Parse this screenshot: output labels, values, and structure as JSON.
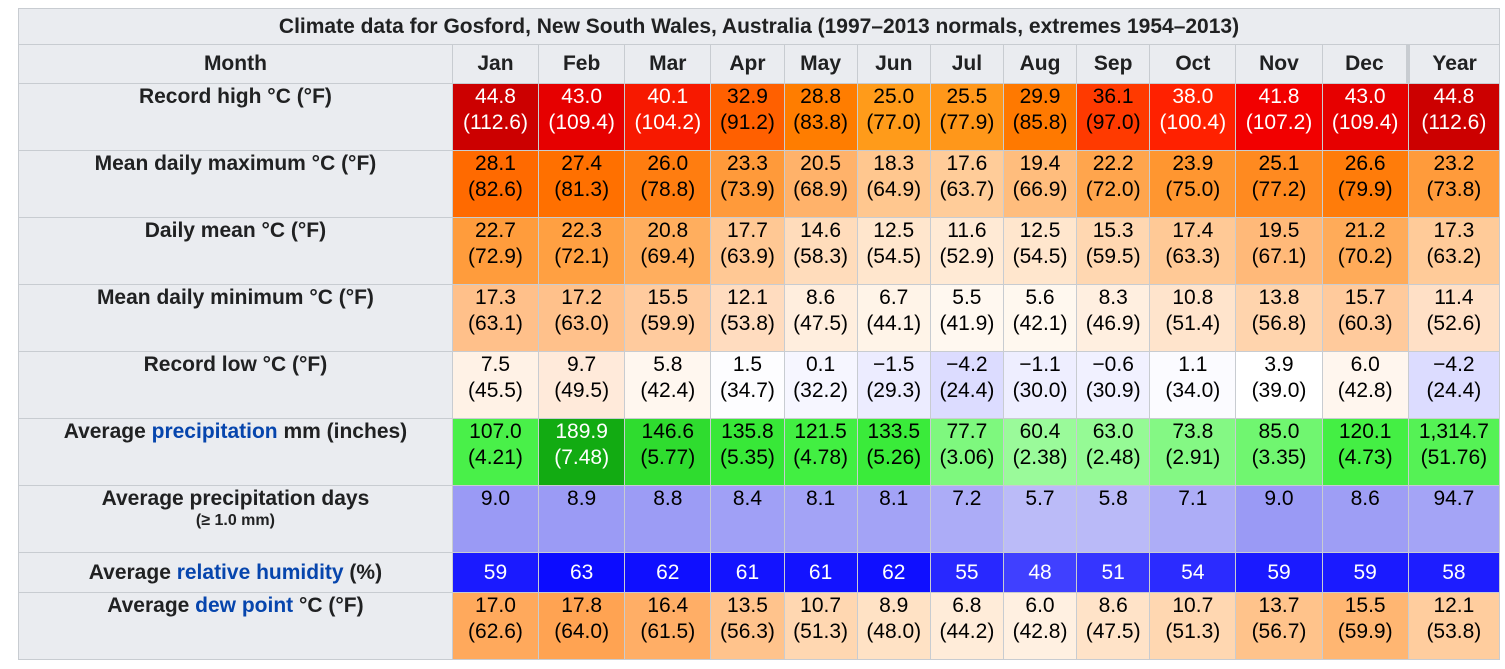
{
  "caption": "Climate data for Gosford, New South Wales, Australia (1997–2013 normals, extremes 1954–2013)",
  "header": {
    "month_label": "Month",
    "months": [
      "Jan",
      "Feb",
      "Mar",
      "Apr",
      "May",
      "Jun",
      "Jul",
      "Aug",
      "Sep",
      "Oct",
      "Nov",
      "Dec"
    ],
    "year_label": "Year"
  },
  "rows": {
    "record_high": {
      "label": "Record high °C (°F)",
      "c": [
        "44.8",
        "43.0",
        "40.1",
        "32.9",
        "28.8",
        "25.0",
        "25.5",
        "29.9",
        "36.1",
        "38.0",
        "41.8",
        "43.0",
        "44.8"
      ],
      "f": [
        "(112.6)",
        "(109.4)",
        "(104.2)",
        "(91.2)",
        "(83.8)",
        "(77.0)",
        "(77.9)",
        "(85.8)",
        "(97.0)",
        "(100.4)",
        "(107.2)",
        "(109.4)",
        "(112.6)"
      ],
      "colors": [
        "#cc0000",
        "#e60000",
        "#f71900",
        "#ff6000",
        "#ff7d00",
        "#ff9b1a",
        "#ff971a",
        "#ff7900",
        "#ff3a00",
        "#ff2100",
        "#f20000",
        "#e60000",
        "#cc0000"
      ],
      "text_colors": [
        "#ffffff",
        "#ffffff",
        "#ffffff",
        "#000000",
        "#000000",
        "#000000",
        "#000000",
        "#000000",
        "#000000",
        "#ffffff",
        "#ffffff",
        "#ffffff",
        "#ffffff"
      ]
    },
    "mean_max": {
      "label": "Mean daily maximum °C (°F)",
      "c": [
        "28.1",
        "27.4",
        "26.0",
        "23.3",
        "20.5",
        "18.3",
        "17.6",
        "19.4",
        "22.2",
        "23.9",
        "25.1",
        "26.6",
        "23.2"
      ],
      "f": [
        "(82.6)",
        "(81.3)",
        "(78.8)",
        "(73.9)",
        "(68.9)",
        "(64.9)",
        "(63.7)",
        "(66.9)",
        "(72.0)",
        "(75.0)",
        "(77.2)",
        "(79.9)",
        "(73.8)"
      ],
      "colors": [
        "#ff6a00",
        "#ff7000",
        "#ff7d10",
        "#ff9a3a",
        "#ffb26a",
        "#ffc78f",
        "#ffcc99",
        "#ffbd7d",
        "#ffa54d",
        "#ff9630",
        "#ff8a20",
        "#ff7c0a",
        "#ff9b3b"
      ],
      "text_colors": [
        "#000000",
        "#000000",
        "#000000",
        "#000000",
        "#000000",
        "#000000",
        "#000000",
        "#000000",
        "#000000",
        "#000000",
        "#000000",
        "#000000",
        "#000000"
      ]
    },
    "daily_mean": {
      "label": "Daily mean °C (°F)",
      "c": [
        "22.7",
        "22.3",
        "20.8",
        "17.7",
        "14.6",
        "12.5",
        "11.6",
        "12.5",
        "15.3",
        "17.4",
        "19.5",
        "21.2",
        "17.3"
      ],
      "f": [
        "(72.9)",
        "(72.1)",
        "(69.4)",
        "(63.9)",
        "(58.3)",
        "(54.5)",
        "(52.9)",
        "(54.5)",
        "(59.5)",
        "(63.3)",
        "(67.1)",
        "(70.2)",
        "(63.2)"
      ],
      "colors": [
        "#ff9c3c",
        "#ffa042",
        "#ffae5e",
        "#ffc894",
        "#ffdcbb",
        "#ffe6cd",
        "#ffead5",
        "#ffe6cd",
        "#ffd7b1",
        "#ffc996",
        "#ffb979",
        "#ffab59",
        "#ffcb99"
      ],
      "text_colors": [
        "#000000",
        "#000000",
        "#000000",
        "#000000",
        "#000000",
        "#000000",
        "#000000",
        "#000000",
        "#000000",
        "#000000",
        "#000000",
        "#000000",
        "#000000"
      ]
    },
    "mean_min": {
      "label": "Mean daily minimum °C (°F)",
      "c": [
        "17.3",
        "17.2",
        "15.5",
        "12.1",
        "8.6",
        "6.7",
        "5.5",
        "5.6",
        "8.3",
        "10.8",
        "13.8",
        "15.7",
        "11.4"
      ],
      "f": [
        "(63.1)",
        "(63.0)",
        "(59.9)",
        "(53.8)",
        "(47.5)",
        "(44.1)",
        "(41.9)",
        "(42.1)",
        "(46.9)",
        "(51.4)",
        "(56.8)",
        "(60.3)",
        "(52.6)"
      ],
      "colors": [
        "#ffc08a",
        "#ffc18b",
        "#ffcb9e",
        "#ffdcbf",
        "#ffeede",
        "#fff4e8",
        "#fff8f0",
        "#fff8ef",
        "#ffefe0",
        "#ffe4cc",
        "#ffd4ad",
        "#ffca9c",
        "#ffe0c6"
      ],
      "text_colors": [
        "#000000",
        "#000000",
        "#000000",
        "#000000",
        "#000000",
        "#000000",
        "#000000",
        "#000000",
        "#000000",
        "#000000",
        "#000000",
        "#000000",
        "#000000"
      ]
    },
    "record_low": {
      "label": "Record low °C (°F)",
      "c": [
        "7.5",
        "9.7",
        "5.8",
        "1.5",
        "0.1",
        "−1.5",
        "−4.2",
        "−1.1",
        "−0.6",
        "1.1",
        "3.9",
        "6.0",
        "−4.2"
      ],
      "f": [
        "(45.5)",
        "(49.5)",
        "(42.4)",
        "(34.7)",
        "(32.2)",
        "(29.3)",
        "(24.4)",
        "(30.0)",
        "(30.9)",
        "(34.0)",
        "(39.0)",
        "(42.8)",
        "(24.4)"
      ],
      "colors": [
        "#fff2e6",
        "#ffeada",
        "#fff7ef",
        "#fdfdff",
        "#f6f6ff",
        "#ececff",
        "#dcdcff",
        "#eeeeff",
        "#f1f1ff",
        "#fbfbff",
        "#ffffff",
        "#fff6ee",
        "#dcdcff"
      ],
      "text_colors": [
        "#000000",
        "#000000",
        "#000000",
        "#000000",
        "#000000",
        "#000000",
        "#000000",
        "#000000",
        "#000000",
        "#000000",
        "#000000",
        "#000000",
        "#000000"
      ]
    },
    "precip": {
      "label_pre": "Average ",
      "label_link": "precipitation",
      "label_post": " mm (inches)",
      "v": [
        "107.0",
        "189.9",
        "146.6",
        "135.8",
        "121.5",
        "133.5",
        "77.7",
        "60.4",
        "63.0",
        "73.8",
        "85.0",
        "120.1",
        "1,314.7"
      ],
      "in": [
        "(4.21)",
        "(7.48)",
        "(5.77)",
        "(5.35)",
        "(4.78)",
        "(5.26)",
        "(3.06)",
        "(2.38)",
        "(2.48)",
        "(2.91)",
        "(3.35)",
        "(4.73)",
        "(51.76)"
      ],
      "colors": [
        "#49f049",
        "#12ab12",
        "#2fdc2f",
        "#38e838",
        "#42ef42",
        "#3aeb3a",
        "#7ef87e",
        "#9afa9a",
        "#95fa95",
        "#84f884",
        "#70f670",
        "#44ef44",
        "#55f255"
      ],
      "text_colors": [
        "#000000",
        "#ffffff",
        "#000000",
        "#000000",
        "#000000",
        "#000000",
        "#000000",
        "#000000",
        "#000000",
        "#000000",
        "#000000",
        "#000000",
        "#000000"
      ]
    },
    "precip_days": {
      "label": "Average precipitation days",
      "sub": "(≥ 1.0 mm)",
      "v": [
        "9.0",
        "8.9",
        "8.8",
        "8.4",
        "8.1",
        "8.1",
        "7.2",
        "5.7",
        "5.8",
        "7.1",
        "9.0",
        "8.6",
        "94.7"
      ],
      "colors": [
        "#9a9af5",
        "#9b9bf5",
        "#9c9cf5",
        "#a0a0f6",
        "#a3a3f6",
        "#a3a3f6",
        "#acacf7",
        "#bbbbf8",
        "#babaf8",
        "#adadf7",
        "#9a9af5",
        "#9e9ef5",
        "#a4a4f6"
      ],
      "text_colors": [
        "#000000",
        "#000000",
        "#000000",
        "#000000",
        "#000000",
        "#000000",
        "#000000",
        "#000000",
        "#000000",
        "#000000",
        "#000000",
        "#000000",
        "#000000"
      ]
    },
    "humidity": {
      "label_pre": "Average ",
      "label_link": "relative humidity",
      "label_post": " (%)",
      "v": [
        "59",
        "63",
        "62",
        "61",
        "61",
        "62",
        "55",
        "48",
        "51",
        "54",
        "59",
        "59",
        "58"
      ],
      "colors": [
        "#1a1aff",
        "#0c0cff",
        "#0f0fff",
        "#1313ff",
        "#1313ff",
        "#0f0fff",
        "#2828ff",
        "#4040ff",
        "#3535ff",
        "#2b2bff",
        "#1a1aff",
        "#1a1aff",
        "#1d1dff"
      ],
      "text_colors": [
        "#ffffff",
        "#ffffff",
        "#ffffff",
        "#ffffff",
        "#ffffff",
        "#ffffff",
        "#ffffff",
        "#ffffff",
        "#ffffff",
        "#ffffff",
        "#ffffff",
        "#ffffff",
        "#ffffff"
      ]
    },
    "dew_point": {
      "label_pre": "Average ",
      "label_link": "dew point",
      "label_post": " °C (°F)",
      "c": [
        "17.0",
        "17.8",
        "16.4",
        "13.5",
        "10.7",
        "8.9",
        "6.8",
        "6.0",
        "8.6",
        "10.7",
        "13.7",
        "15.5",
        "12.1"
      ],
      "f": [
        "(62.6)",
        "(64.0)",
        "(61.5)",
        "(56.3)",
        "(51.3)",
        "(48.0)",
        "(44.2)",
        "(42.8)",
        "(47.5)",
        "(51.3)",
        "(56.7)",
        "(59.9)",
        "(53.8)"
      ],
      "colors": [
        "#ffa95c",
        "#ffa352",
        "#ffae66",
        "#ffc38c",
        "#ffd7b1",
        "#ffe2c5",
        "#ffecd9",
        "#fff0e1",
        "#ffe3c8",
        "#ffd7b1",
        "#ffc38b",
        "#ffb672",
        "#ffcd9e"
      ],
      "text_colors": [
        "#000000",
        "#000000",
        "#000000",
        "#000000",
        "#000000",
        "#000000",
        "#000000",
        "#000000",
        "#000000",
        "#000000",
        "#000000",
        "#000000",
        "#000000"
      ]
    }
  }
}
